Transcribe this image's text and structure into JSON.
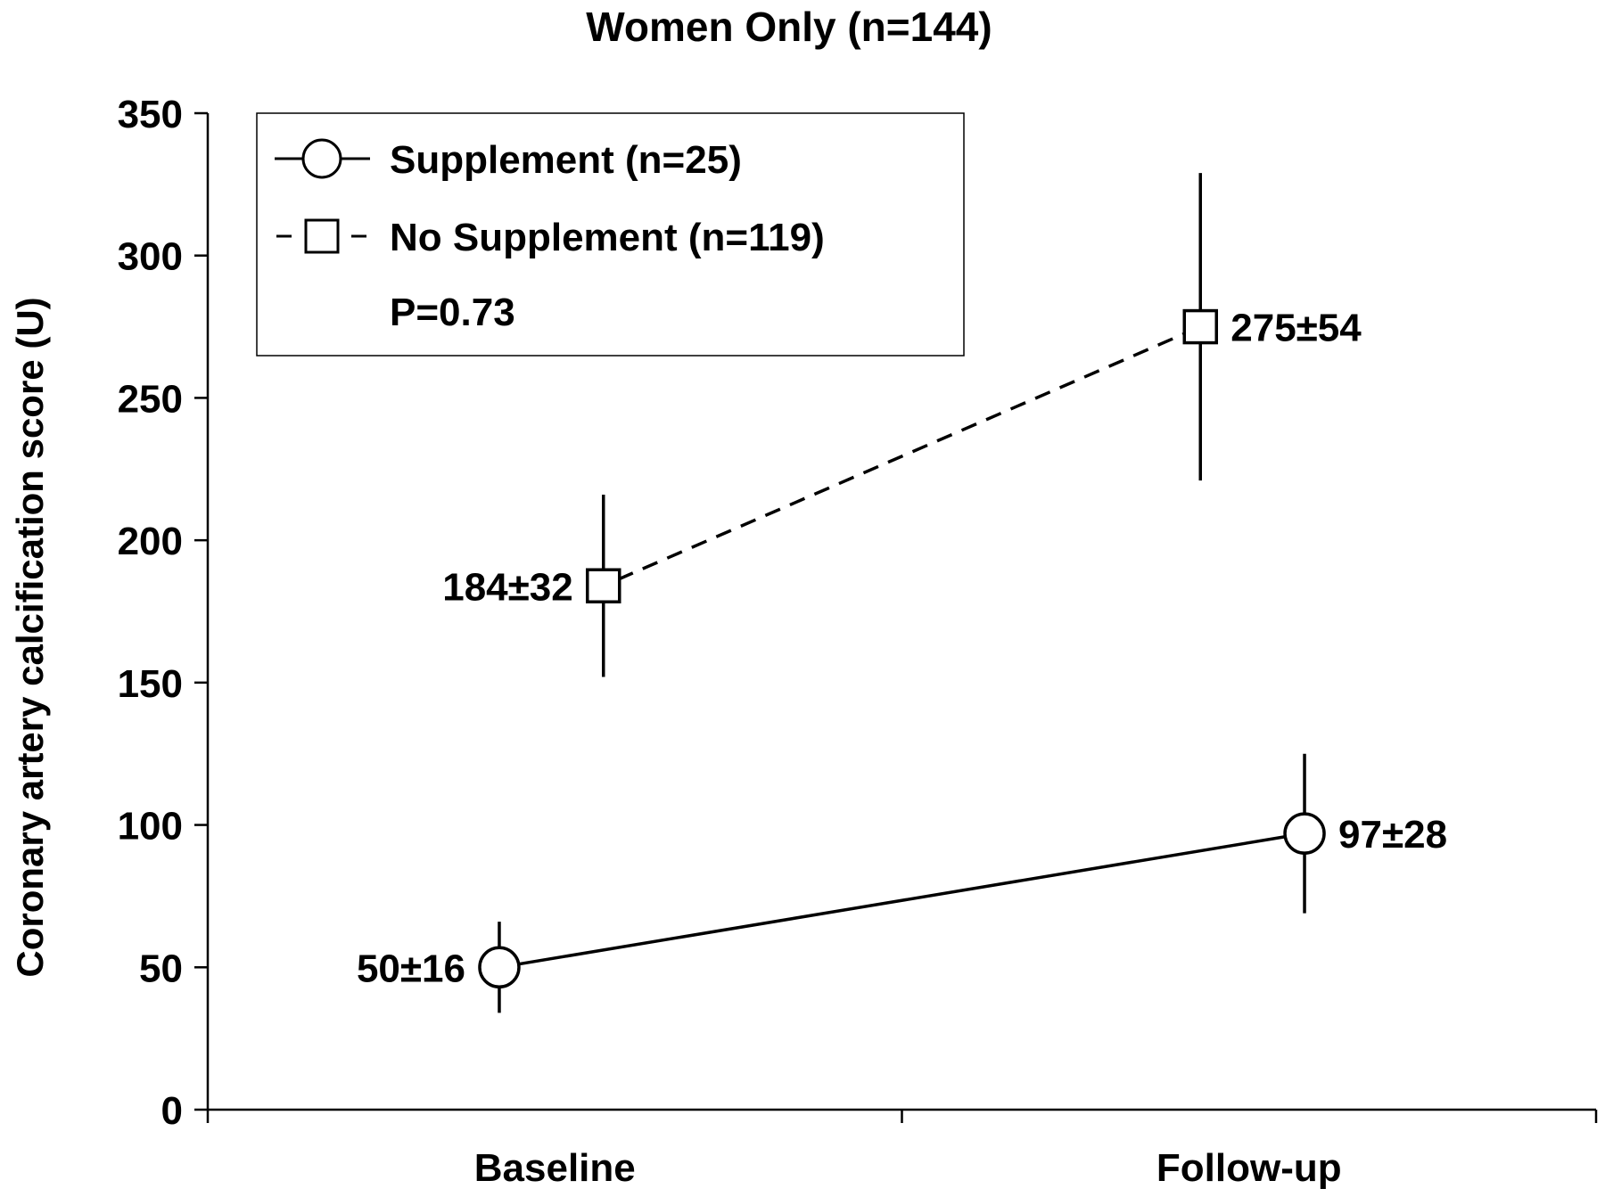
{
  "chart_data": {
    "type": "line",
    "title": "Women Only (n=144)",
    "ylabel": "Coronary artery calcification score (U)",
    "xlabel": "",
    "categories": [
      "Baseline",
      "Follow-up"
    ],
    "ylim": [
      0,
      350
    ],
    "yticks": [
      0,
      50,
      100,
      150,
      200,
      250,
      300,
      350
    ],
    "grid": false,
    "legend_position": "top-left",
    "annotation": "P=0.73",
    "series": [
      {
        "name": "Supplement (n=25)",
        "marker": "circle",
        "line_style": "solid",
        "x_positions": [
          0.21,
          0.79
        ],
        "values": [
          50,
          97
        ],
        "errors": [
          16,
          28
        ],
        "labels": [
          "50±16",
          "97±28"
        ]
      },
      {
        "name": "No Supplement (n=119)",
        "marker": "square",
        "line_style": "dashed",
        "x_positions": [
          0.285,
          0.715
        ],
        "values": [
          184,
          275
        ],
        "errors": [
          32,
          54
        ],
        "labels": [
          "184±32",
          "275±54"
        ]
      }
    ]
  }
}
